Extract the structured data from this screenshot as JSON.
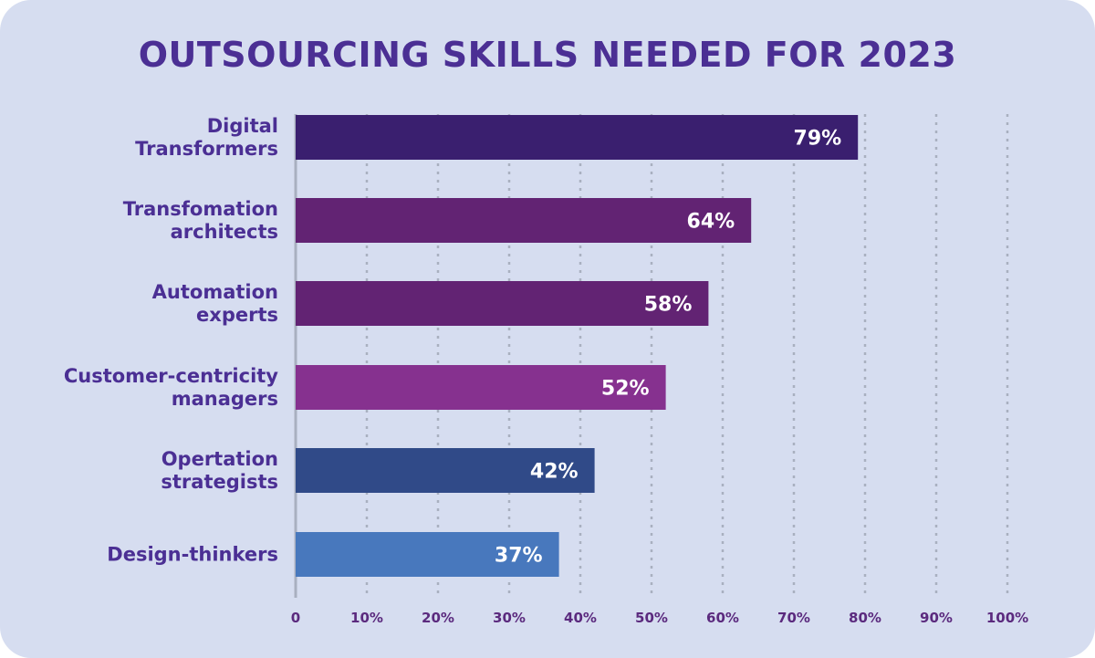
{
  "chart_data": {
    "type": "bar",
    "orientation": "horizontal",
    "title": "OUTSOURCING SKILLS NEEDED FOR 2023",
    "categories": [
      [
        "Digital",
        "Transformers"
      ],
      [
        "Transfomation",
        "architects"
      ],
      [
        "Automation",
        "experts"
      ],
      [
        "Customer-centricity",
        "managers"
      ],
      [
        "Opertation",
        "strategists"
      ],
      [
        "Design-thinkers"
      ]
    ],
    "values": [
      79,
      64,
      58,
      52,
      42,
      37
    ],
    "value_labels": [
      "79%",
      "64%",
      "58%",
      "52%",
      "42%",
      "37%"
    ],
    "colors": [
      "#3a1f6f",
      "#622373",
      "#622373",
      "#86318f",
      "#304a88",
      "#4878bd"
    ],
    "xlim": [
      0,
      100
    ],
    "x_ticks": [
      0,
      10,
      20,
      30,
      40,
      50,
      60,
      70,
      80,
      90,
      100
    ],
    "x_tick_labels": [
      "0",
      "10%",
      "20%",
      "30%",
      "40%",
      "50%",
      "60%",
      "70%",
      "80%",
      "90%",
      "100%"
    ],
    "grid": "vertical dotted",
    "background": "#d6ddf0"
  }
}
